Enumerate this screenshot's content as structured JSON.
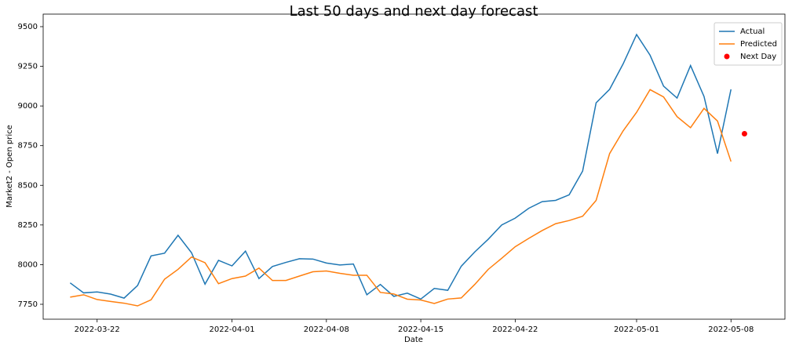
{
  "chart_data": {
    "type": "line",
    "title": "Last 50 days and next day forecast",
    "xlabel": "Date",
    "ylabel": "Market2 - Open price",
    "x": [
      "2022-03-20",
      "2022-03-21",
      "2022-03-22",
      "2022-03-23",
      "2022-03-24",
      "2022-03-25",
      "2022-03-26",
      "2022-03-27",
      "2022-03-28",
      "2022-03-29",
      "2022-03-30",
      "2022-03-31",
      "2022-04-01",
      "2022-04-02",
      "2022-04-03",
      "2022-04-04",
      "2022-04-05",
      "2022-04-06",
      "2022-04-07",
      "2022-04-08",
      "2022-04-09",
      "2022-04-10",
      "2022-04-11",
      "2022-04-12",
      "2022-04-13",
      "2022-04-14",
      "2022-04-15",
      "2022-04-16",
      "2022-04-17",
      "2022-04-18",
      "2022-04-19",
      "2022-04-20",
      "2022-04-21",
      "2022-04-22",
      "2022-04-23",
      "2022-04-24",
      "2022-04-25",
      "2022-04-26",
      "2022-04-27",
      "2022-04-28",
      "2022-04-29",
      "2022-04-30",
      "2022-05-01",
      "2022-05-02",
      "2022-05-03",
      "2022-05-04",
      "2022-05-05",
      "2022-05-06",
      "2022-05-07",
      "2022-05-08"
    ],
    "series": [
      {
        "name": "Actual",
        "color": "#1f77b4",
        "values": [
          7885,
          7822,
          7828,
          7814,
          7789,
          7868,
          8055,
          8072,
          8185,
          8075,
          7877,
          8027,
          7992,
          8085,
          7912,
          7988,
          8014,
          8037,
          8035,
          8010,
          7998,
          8004,
          7810,
          7875,
          7800,
          7820,
          7783,
          7850,
          7838,
          7990,
          8080,
          8160,
          8250,
          8293,
          8355,
          8397,
          8405,
          8440,
          8590,
          9020,
          9105,
          9265,
          9450,
          9320,
          9125,
          9050,
          9255,
          9060,
          8700,
          9105
        ]
      },
      {
        "name": "Predicted",
        "color": "#ff7f0e",
        "values": [
          7795,
          7810,
          7780,
          7768,
          7757,
          7740,
          7778,
          7908,
          7970,
          8048,
          8012,
          7880,
          7912,
          7928,
          7978,
          7900,
          7900,
          7928,
          7955,
          7960,
          7945,
          7933,
          7933,
          7825,
          7815,
          7782,
          7777,
          7755,
          7783,
          7790,
          7875,
          7970,
          8040,
          8113,
          8165,
          8215,
          8258,
          8278,
          8305,
          8405,
          8700,
          8843,
          8960,
          9103,
          9057,
          8933,
          8863,
          8985,
          8905,
          8650
        ]
      },
      {
        "name": "Next Day",
        "color": "#ff0000",
        "mode": "scatter",
        "x": [
          "2022-05-09"
        ],
        "values": [
          8825
        ]
      }
    ],
    "xlim": [
      "2022-03-18",
      "2022-05-12"
    ],
    "xticks": [
      "2022-03-22",
      "2022-04-01",
      "2022-04-08",
      "2022-04-15",
      "2022-04-22",
      "2022-05-01",
      "2022-05-08"
    ],
    "ylim": [
      7656,
      9579
    ],
    "yticks": [
      7750,
      8000,
      8250,
      8500,
      8750,
      9000,
      9250,
      9500
    ],
    "legend": "upper right"
  }
}
